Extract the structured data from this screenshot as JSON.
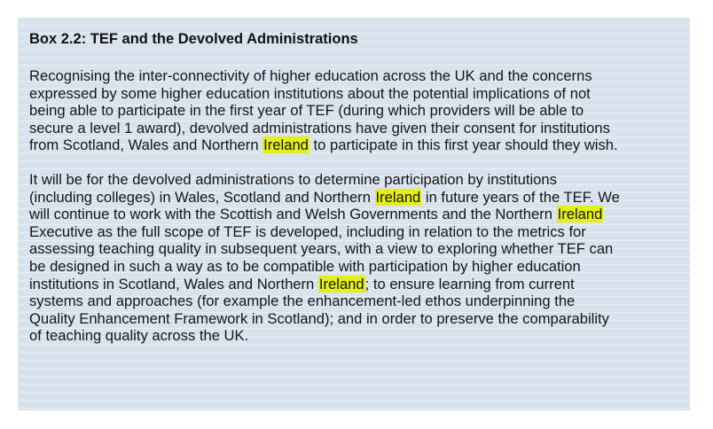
{
  "box": {
    "title": "Box 2.2: TEF and the Devolved Administrations",
    "paragraph1": [
      [
        "Recognising the inter-connectivity of higher education across the UK and the concerns",
        "",
        ""
      ],
      [
        "expressed by some higher education institutions about the potential implications of not",
        "",
        ""
      ],
      [
        "being able to participate in the first year of TEF (during which providers will be able to",
        "",
        ""
      ],
      [
        "secure a level 1 award), devolved administrations have given their consent for institutions",
        "",
        ""
      ],
      [
        "from Scotland, Wales and Northern ",
        "Ireland",
        " to participate in this first year should they wish."
      ]
    ],
    "paragraph2": [
      [
        "It will be for the devolved administrations to determine participation by institutions",
        "",
        ""
      ],
      [
        "(including colleges) in Wales, Scotland and Northern ",
        "Ireland",
        " in future years of the TEF. We"
      ],
      [
        "will continue to work with the Scottish and Welsh Governments and the Northern ",
        "Ireland",
        ""
      ],
      [
        "Executive as the full scope of TEF is developed, including in relation to the metrics for",
        "",
        ""
      ],
      [
        "assessing teaching quality in subsequent years, with a view to exploring whether TEF can",
        "",
        ""
      ],
      [
        "be designed in such a way as to be compatible with participation by higher education",
        "",
        ""
      ],
      [
        "institutions in Scotland, Wales and Northern ",
        "Ireland",
        "; to ensure learning from current"
      ],
      [
        "systems and approaches (for example the enhancement-led ethos underpinning the",
        "",
        ""
      ],
      [
        "Quality Enhancement Framework in Scotland); and in order to preserve the comparability",
        "",
        ""
      ],
      [
        "of teaching quality across the UK.",
        "",
        ""
      ]
    ]
  },
  "colors": {
    "box_background": "#d9e3ee",
    "highlight": "#e3ee1a",
    "text": "#151515"
  }
}
